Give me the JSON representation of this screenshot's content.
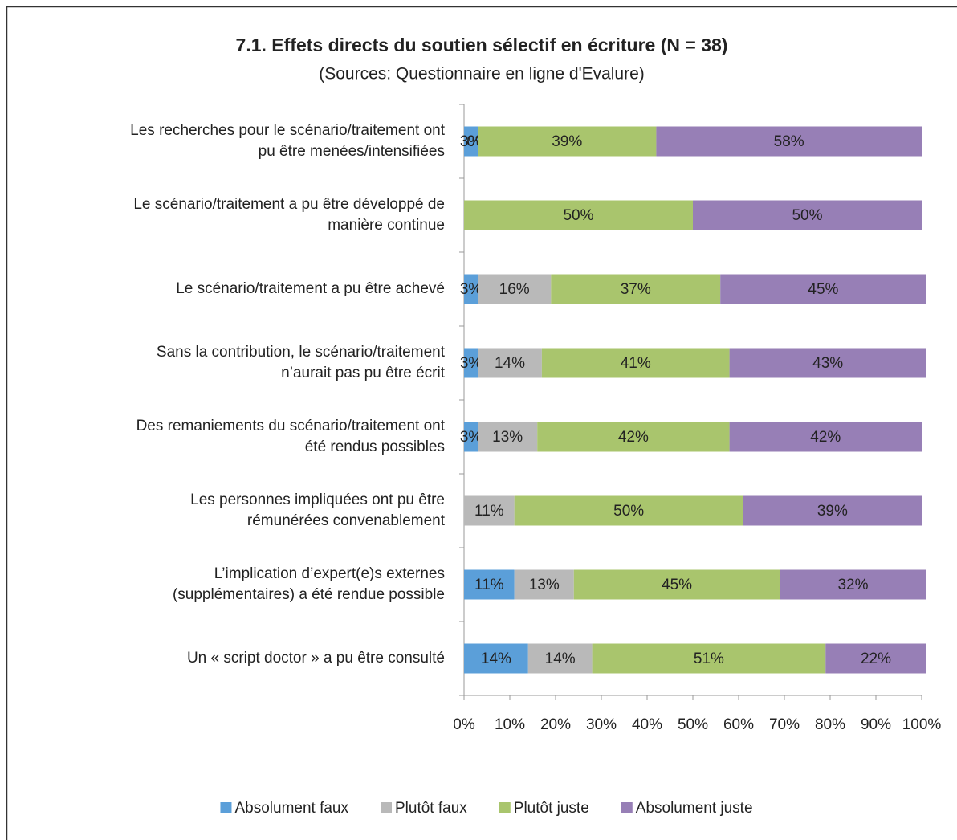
{
  "chart_data": {
    "type": "stacked_bar_horizontal",
    "title": "7.1. Effets directs du soutien sélectif en écriture (N = 38)",
    "subtitle": "(Sources: Questionnaire en ligne d'Evalure)",
    "categories": [
      "Les recherches pour le scénario/traitement ont\npu être menées/intensifiées",
      "Le scénario/traitement a pu être développé de\nmanière continue",
      "Le scénario/traitement a pu être achevé",
      "Sans la contribution, le scénario/traitement\nn’aurait pas pu être écrit",
      "Des remaniements du scénario/traitement ont\nété rendus possibles",
      "Les personnes impliquées ont pu être\nrémunérées convenablement",
      "L’implication d’expert(e)s externes\n(supplémentaires) a été rendue possible",
      "Un « script doctor » a pu être consulté"
    ],
    "series": [
      {
        "name": "Absolument faux",
        "color": "#5b9fd9",
        "values": [
          3,
          null,
          3,
          3,
          3,
          null,
          11,
          14
        ],
        "value_labels": [
          "3%",
          null,
          "3%",
          "3%",
          "3%",
          null,
          "11%",
          "14%"
        ]
      },
      {
        "name": "Plutôt faux",
        "color": "#b9b9b9",
        "values": [
          0,
          null,
          16,
          14,
          13,
          11,
          13,
          14
        ],
        "value_labels": [
          "0%",
          null,
          "16%",
          "14%",
          "13%",
          "11%",
          "13%",
          "14%"
        ]
      },
      {
        "name": "Plutôt juste",
        "color": "#a9c56d",
        "values": [
          39,
          50,
          37,
          41,
          42,
          50,
          45,
          51
        ],
        "value_labels": [
          "39%",
          "50%",
          "37%",
          "41%",
          "42%",
          "50%",
          "45%",
          "51%"
        ]
      },
      {
        "name": "Absolument juste",
        "color": "#977fb6",
        "values": [
          58,
          50,
          45,
          43,
          42,
          39,
          32,
          22
        ],
        "value_labels": [
          "58%",
          "50%",
          "45%",
          "43%",
          "42%",
          "39%",
          "32%",
          "22%"
        ]
      }
    ],
    "xlim": [
      0,
      100
    ],
    "xticks": [
      {
        "value": 0,
        "label": "0%"
      },
      {
        "value": 10,
        "label": "10%"
      },
      {
        "value": 20,
        "label": "20%"
      },
      {
        "value": 30,
        "label": "30%"
      },
      {
        "value": 40,
        "label": "40%"
      },
      {
        "value": 50,
        "label": "50%"
      },
      {
        "value": 60,
        "label": "60%"
      },
      {
        "value": 70,
        "label": "70%"
      },
      {
        "value": 80,
        "label": "80%"
      },
      {
        "value": 90,
        "label": "90%"
      },
      {
        "value": 100,
        "label": "100%"
      }
    ],
    "legend": "bottom"
  }
}
